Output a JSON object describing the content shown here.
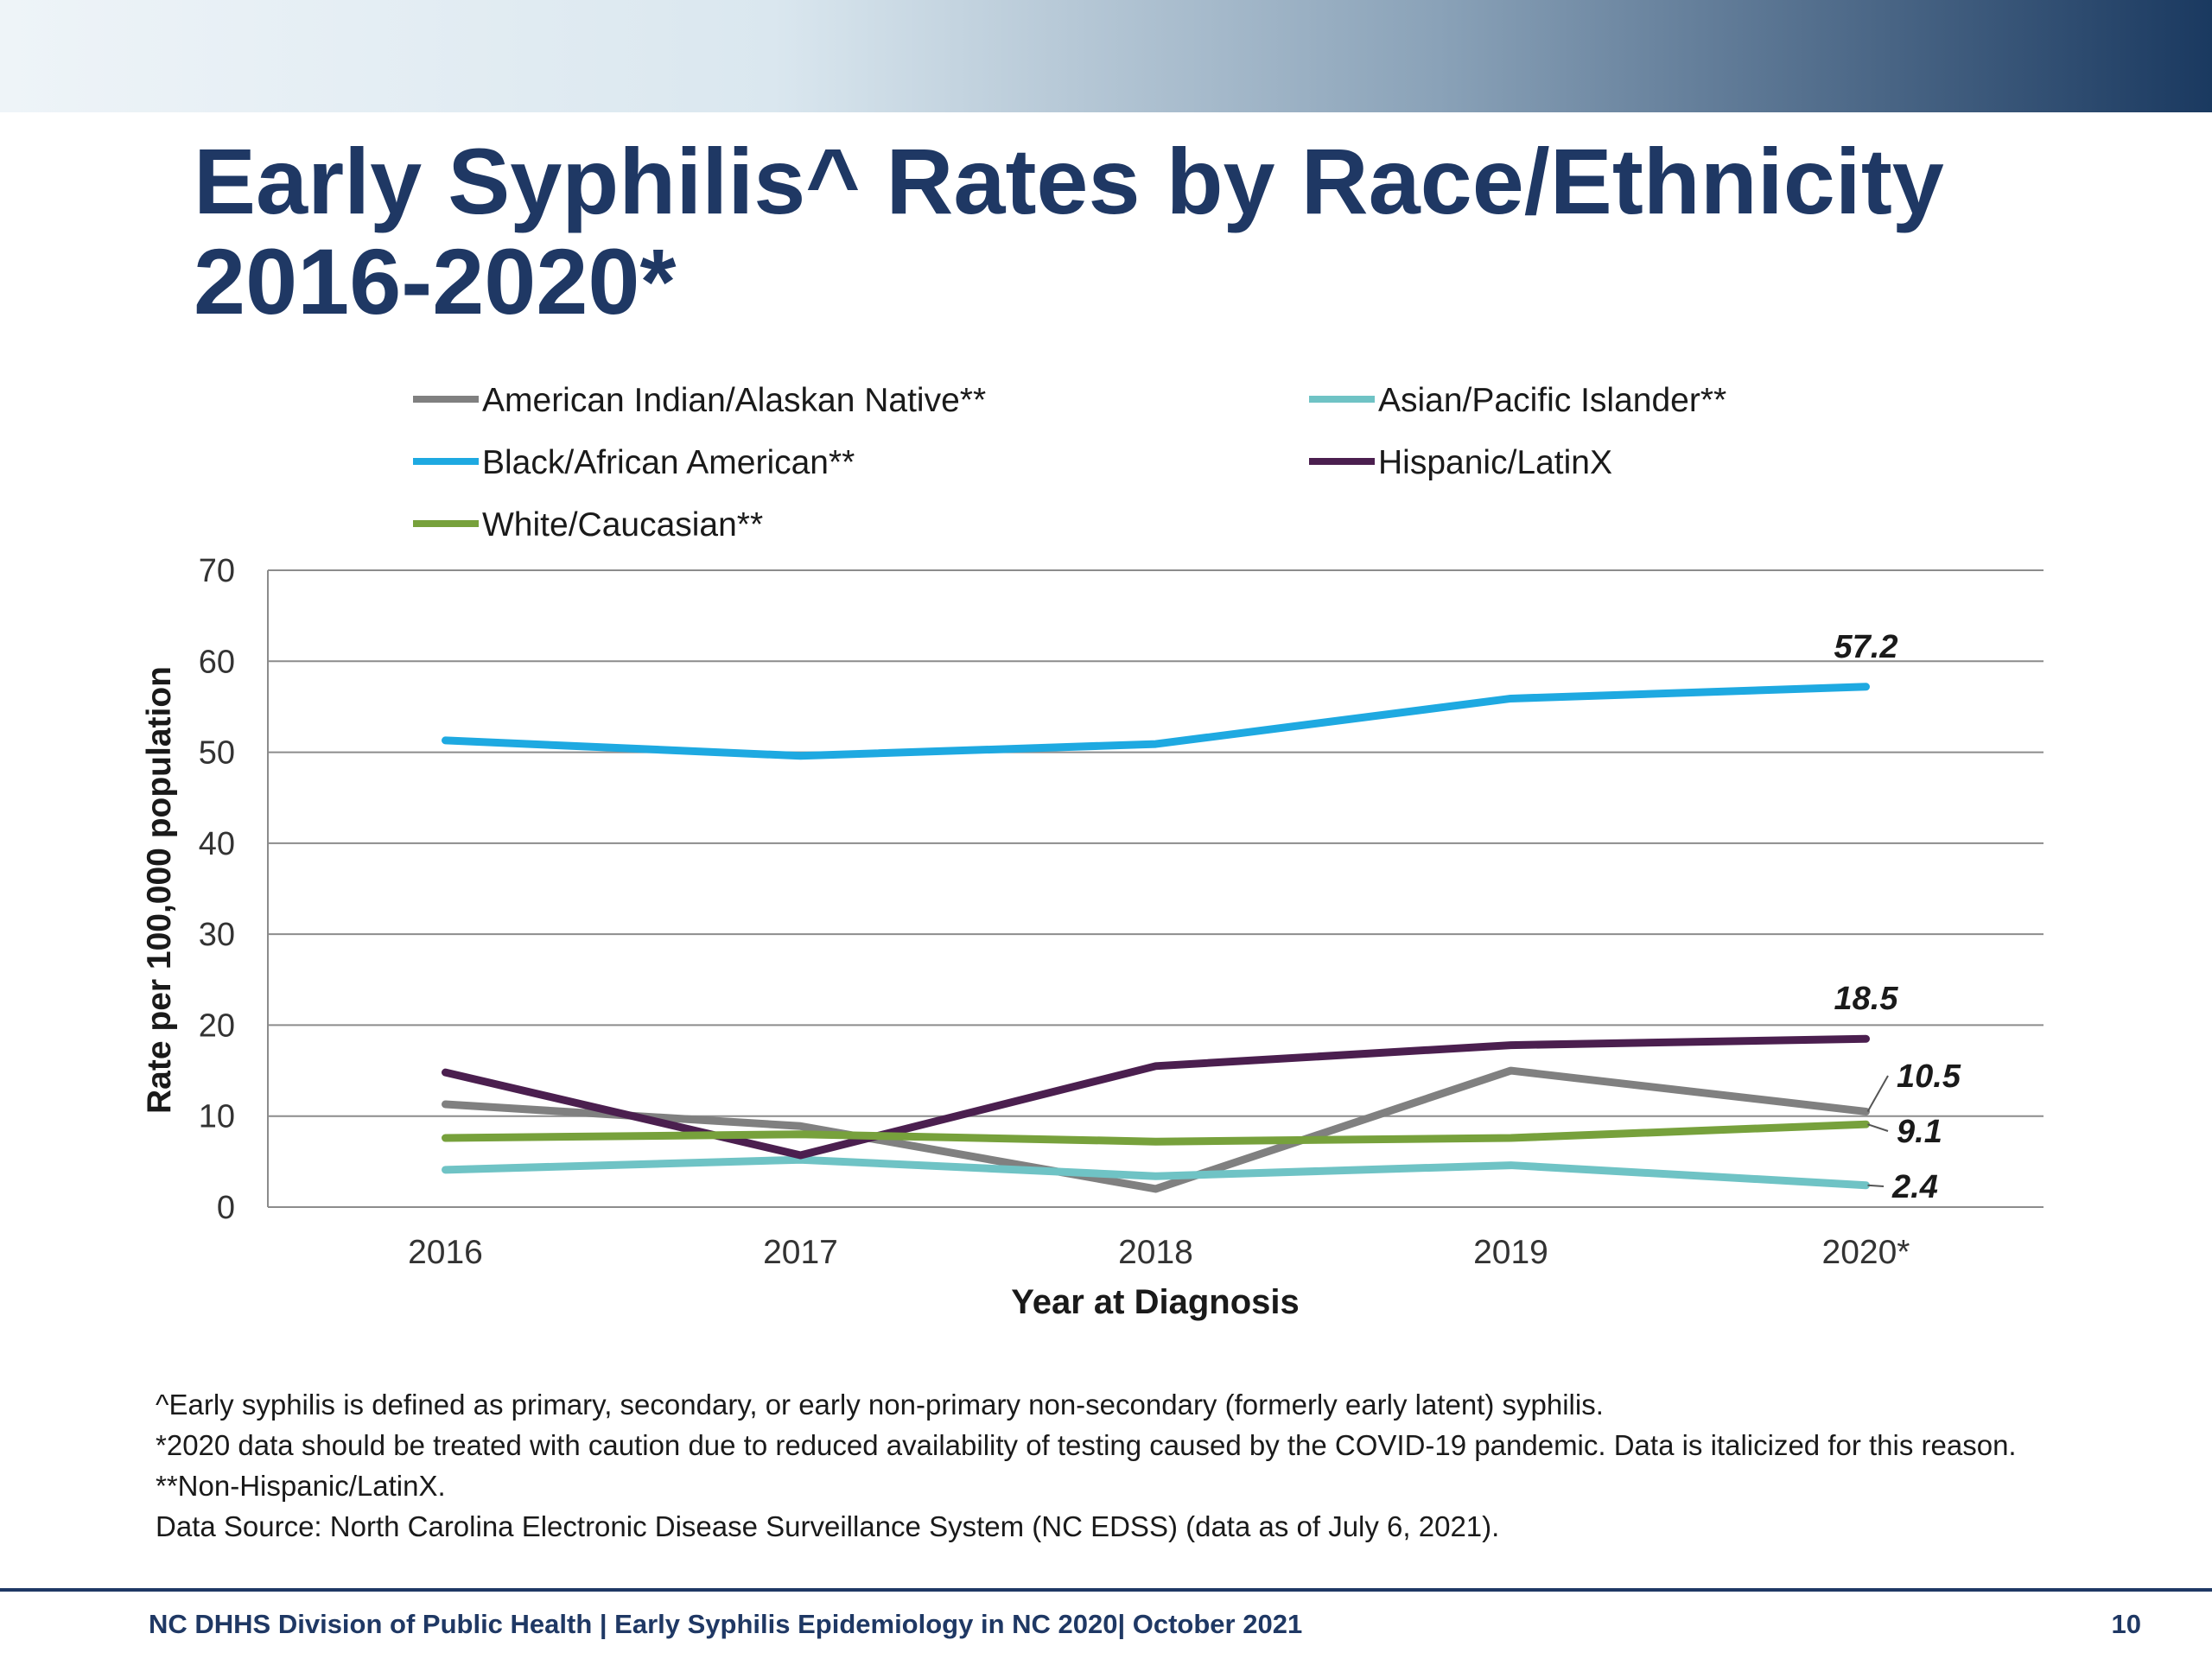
{
  "slide": {
    "title_line1": "Early Syphilis^ Rates by Race/Ethnicity",
    "title_line2": "2016-2020*",
    "footnotes": [
      "^Early syphilis is defined as primary, secondary, or early non-primary non-secondary (formerly early latent) syphilis.",
      "*2020 data should be treated with caution due to reduced availability of testing caused by the COVID-19 pandemic. Data is italicized for this reason.",
      "**Non-Hispanic/LatinX.",
      "Data Source: North Carolina Electronic Disease Surveillance System (NC EDSS) (data as of July 6, 2021)."
    ],
    "footer_text": "NC DHHS Division of Public Health | Early Syphilis Epidemiology in NC 2020| October 2021",
    "page_number": "10"
  },
  "chart_data": {
    "type": "line",
    "title": "",
    "xlabel": "Year at Diagnosis",
    "ylabel": "Rate per 100,000 population",
    "categories": [
      "2016",
      "2017",
      "2018",
      "2019",
      "2020*"
    ],
    "ylim": [
      0,
      70
    ],
    "yticks": [
      0,
      10,
      20,
      30,
      40,
      50,
      60,
      70
    ],
    "grid": true,
    "legend_position": "top",
    "series": [
      {
        "name": "American Indian/Alaskan Native**",
        "color": "#808080",
        "values": [
          11.3,
          8.9,
          2.0,
          15.0,
          10.5
        ],
        "end_label": "10.5"
      },
      {
        "name": "Asian/Pacific Islander**",
        "color": "#6fc3c5",
        "values": [
          4.1,
          5.2,
          3.4,
          4.6,
          2.4
        ],
        "end_label": "2.4"
      },
      {
        "name": "Black/African American**",
        "color": "#1ea9e1",
        "values": [
          51.3,
          49.6,
          50.9,
          55.9,
          57.2
        ],
        "end_label": "57.2"
      },
      {
        "name": "Hispanic/LatinX",
        "color": "#4b1f4f",
        "values": [
          14.8,
          5.7,
          15.5,
          17.8,
          18.5
        ],
        "end_label": "18.5"
      },
      {
        "name": "White/Caucasian**",
        "color": "#77a13c",
        "values": [
          7.6,
          8.0,
          7.2,
          7.6,
          9.1
        ],
        "end_label": "9.1"
      }
    ]
  }
}
